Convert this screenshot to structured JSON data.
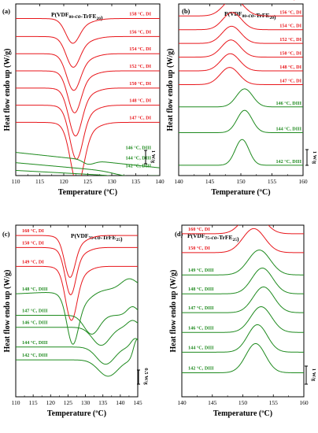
{
  "chart_data": [
    {
      "type": "line",
      "panel": "(a)",
      "title_parts": [
        [
          "P(VDF",
          false,
          false
        ],
        [
          "80",
          false,
          true
        ],
        [
          "-",
          false,
          false
        ],
        [
          "co",
          true,
          false
        ],
        [
          "-TrFE",
          false,
          false
        ],
        [
          "20",
          false,
          true
        ],
        [
          ")",
          false,
          false
        ]
      ],
      "xlabel": "Temperature (ºC)",
      "ylabel": "Heat flow endo up (W/g)",
      "xlim": [
        110,
        140
      ],
      "xticks": [
        110,
        115,
        120,
        125,
        130,
        135,
        140
      ],
      "scalebar": {
        "label": "1 W/g"
      },
      "series": [
        {
          "name": "158 °C, DI",
          "color": "#e8161b",
          "base": 9.15,
          "peaks": [
            [
              121.8,
              -1.2,
              1.4
            ],
            [
              123.5,
              -0.3,
              2.5
            ]
          ]
        },
        {
          "name": "156 °C, DI",
          "color": "#e8161b",
          "base": 8.1,
          "peaks": [
            [
              121.9,
              -1.5,
              1.4
            ],
            [
              123.5,
              -0.35,
              2.5
            ]
          ]
        },
        {
          "name": "154 °C, DI",
          "color": "#e8161b",
          "base": 7.1,
          "peaks": [
            [
              122.0,
              -1.8,
              1.4
            ],
            [
              123.5,
              -0.4,
              2.5
            ]
          ]
        },
        {
          "name": "152 °C, DI",
          "color": "#e8161b",
          "base": 6.1,
          "peaks": [
            [
              122.2,
              -2.1,
              1.35
            ],
            [
              123.6,
              -0.4,
              2.5
            ]
          ]
        },
        {
          "name": "150 °C, DI",
          "color": "#e8161b",
          "base": 5.1,
          "peaks": [
            [
              122.4,
              -2.4,
              1.35
            ],
            [
              123.7,
              -0.45,
              2.5
            ]
          ]
        },
        {
          "name": "148 °C, DI",
          "color": "#e8161b",
          "base": 4.1,
          "peaks": [
            [
              122.6,
              -2.7,
              1.35
            ],
            [
              123.8,
              -0.5,
              2.5
            ]
          ]
        },
        {
          "name": "147 °C, DI",
          "color": "#e8161b",
          "base": 3.1,
          "peaks": [
            [
              122.8,
              -3.1,
              1.4
            ],
            [
              124.0,
              -0.55,
              2.6
            ]
          ]
        },
        {
          "name": "146 °C, DIII",
          "color": "#1e8a1e",
          "base": 1.35,
          "slope": -0.03,
          "peaks": [
            [
              125.3,
              -0.35,
              1.1
            ],
            [
              125.5,
              0.12,
              0.9
            ]
          ]
        },
        {
          "name": "144 °C, DIII",
          "color": "#1e8a1e",
          "base": 0.75,
          "slope": -0.025,
          "peaks": [
            [
              133.5,
              -0.2,
              3.0
            ]
          ]
        },
        {
          "name": "142 °C, DIII",
          "color": "#1e8a1e",
          "base": 0.3,
          "slope": -0.015,
          "peaks": [
            [
              134.5,
              -0.12,
              2.5
            ]
          ]
        }
      ]
    },
    {
      "type": "line",
      "panel": "(b)",
      "title_parts": [
        [
          "P(VDF",
          false,
          false
        ],
        [
          "80",
          false,
          true
        ],
        [
          "-",
          false,
          false
        ],
        [
          "co",
          true,
          false
        ],
        [
          "-TrFE",
          false,
          false
        ],
        [
          "20",
          false,
          true
        ],
        [
          ")",
          false,
          false
        ]
      ],
      "xlabel": "Temperature (ºC)",
      "ylabel": "Heat flow endo up (W/g)",
      "xlim": [
        140,
        160
      ],
      "xticks": [
        140,
        145,
        150,
        155,
        160
      ],
      "scalebar": {
        "label": "1 W/g"
      },
      "series": [
        {
          "name": "158 °C, DI",
          "color": "#e8161b",
          "base": 10.1,
          "peaks": [
            [
              148.9,
              1.0,
              1.6
            ]
          ]
        },
        {
          "name": "156 °C, DI",
          "color": "#e8161b",
          "base": 9.3,
          "peaks": [
            [
              148.8,
              1.0,
              1.6
            ]
          ]
        },
        {
          "name": "154 °C, DI",
          "color": "#e8161b",
          "base": 8.5,
          "peaks": [
            [
              148.6,
              1.0,
              1.5
            ]
          ]
        },
        {
          "name": "152 °C, DI",
          "color": "#e8161b",
          "base": 7.7,
          "peaks": [
            [
              148.5,
              1.0,
              1.5
            ]
          ]
        },
        {
          "name": "150 °C, DI",
          "color": "#e8161b",
          "base": 6.9,
          "peaks": [
            [
              148.4,
              1.0,
              1.5
            ]
          ]
        },
        {
          "name": "148 °C, DI",
          "color": "#e8161b",
          "base": 6.1,
          "peaks": [
            [
              148.3,
              1.0,
              1.5
            ]
          ]
        },
        {
          "name": "147 °C, DI",
          "color": "#e8161b",
          "base": 5.3,
          "peaks": [
            [
              148.2,
              1.0,
              1.5
            ]
          ]
        },
        {
          "name": "146 °C, DIII",
          "color": "#1e8a1e",
          "base": 4.0,
          "peaks": [
            [
              150.6,
              1.05,
              1.3
            ]
          ]
        },
        {
          "name": "144 °C, DIII",
          "color": "#1e8a1e",
          "base": 2.5,
          "peaks": [
            [
              150.6,
              1.3,
              1.2
            ]
          ]
        },
        {
          "name": "142 °C, DIII",
          "color": "#1e8a1e",
          "base": 0.6,
          "peaks": [
            [
              150.2,
              1.5,
              1.1
            ]
          ]
        }
      ]
    },
    {
      "type": "line",
      "panel": "(c)",
      "title_parts": [
        [
          "P(VDF",
          false,
          false
        ],
        [
          "75",
          false,
          true
        ],
        [
          "-",
          false,
          false
        ],
        [
          "co",
          true,
          false
        ],
        [
          "-TrFE",
          false,
          false
        ],
        [
          "25",
          false,
          true
        ],
        [
          ")",
          false,
          false
        ]
      ],
      "xlabel": "Temperature (ºC)",
      "ylabel": "Heat flow endo up (W/g)",
      "xlim": [
        110,
        145
      ],
      "xticks": [
        110,
        115,
        120,
        125,
        130,
        135,
        140,
        145
      ],
      "scalebar": {
        "label": "0.5 W/g"
      },
      "series": [
        {
          "name": "160 °C, DI",
          "color": "#e8161b",
          "base": 9.4,
          "peaks": [
            [
              125.5,
              -2.0,
              1.5
            ],
            [
              127.0,
              -0.5,
              3.0
            ]
          ]
        },
        {
          "name": "150 °C, DI",
          "color": "#e8161b",
          "base": 8.7,
          "peaks": [
            [
              125.7,
              -2.3,
              1.5
            ],
            [
              127.0,
              -0.5,
              3.0
            ]
          ]
        },
        {
          "name": "149 °C, DI",
          "color": "#e8161b",
          "base": 7.6,
          "peaks": [
            [
              125.9,
              -2.6,
              1.6
            ],
            [
              127.2,
              -0.6,
              3.0
            ]
          ]
        },
        {
          "name": "148 °C, DIII",
          "color": "#1e8a1e",
          "base": 6.0,
          "slope": 0.01,
          "peaks": [
            [
              126.3,
              -2.4,
              1.6
            ],
            [
              128.0,
              -0.8,
              3.2
            ],
            [
              142.5,
              0.55,
              2.2
            ]
          ]
        },
        {
          "name": "147 °C, DIII",
          "color": "#1e8a1e",
          "base": 4.75,
          "peaks": [
            [
              131.8,
              -1.1,
              2.2
            ],
            [
              143.5,
              0.5,
              1.5
            ]
          ]
        },
        {
          "name": "146 °C, DIII",
          "color": "#1e8a1e",
          "base": 4.05,
          "peaks": [
            [
              134.5,
              -1.05,
              2.5
            ],
            [
              143.5,
              0.4,
              1.5
            ]
          ]
        },
        {
          "name": "144 °C, DIII",
          "color": "#1e8a1e",
          "base": 2.9,
          "peaks": [
            [
              135.8,
              -1.0,
              2.6
            ],
            [
              144.3,
              0.5,
              1.2
            ]
          ]
        },
        {
          "name": "142 °C, DIII",
          "color": "#1e8a1e",
          "base": 2.15,
          "peaks": [
            [
              136.5,
              -0.95,
              2.8
            ],
            [
              144.8,
              1.2,
              1.0
            ]
          ]
        }
      ]
    },
    {
      "type": "line",
      "panel": "(d)",
      "title_parts": [
        [
          "P(VDF",
          false,
          false
        ],
        [
          "75",
          false,
          true
        ],
        [
          "-",
          false,
          false
        ],
        [
          "co",
          true,
          false
        ],
        [
          "-TrFE",
          false,
          false
        ],
        [
          "25",
          false,
          true
        ],
        [
          ")",
          false,
          false
        ]
      ],
      "xlabel": "Temperature (ºC)",
      "ylabel": "Heat flow endo up (W/g)",
      "xlim": [
        140,
        160
      ],
      "xticks": [
        140,
        145,
        150,
        155,
        160
      ],
      "scalebar": {
        "label": "1 W/g"
      },
      "series": [
        {
          "name": "160 °C, DI",
          "color": "#e8161b",
          "base": 9.5,
          "peaks": [
            [
              151.7,
              1.3,
              1.8
            ]
          ]
        },
        {
          "name": "150 °C, DI",
          "color": "#e8161b",
          "base": 8.4,
          "peaks": [
            [
              151.8,
              1.4,
              1.8
            ]
          ]
        },
        {
          "name": "149 °C, DIII",
          "color": "#1e8a1e",
          "base": 7.1,
          "peaks": [
            [
              152.7,
              1.45,
              1.8
            ]
          ]
        },
        {
          "name": "148 °C, DIII",
          "color": "#1e8a1e",
          "base": 6.0,
          "peaks": [
            [
              153.2,
              1.5,
              1.7
            ]
          ]
        },
        {
          "name": "147 °C, DIII",
          "color": "#1e8a1e",
          "base": 4.9,
          "peaks": [
            [
              153.4,
              1.5,
              1.7
            ]
          ]
        },
        {
          "name": "146 °C, DIII",
          "color": "#1e8a1e",
          "base": 3.75,
          "peaks": [
            [
              153.0,
              1.5,
              1.7
            ]
          ]
        },
        {
          "name": "144 °C, DIII",
          "color": "#1e8a1e",
          "base": 2.6,
          "peaks": [
            [
              152.4,
              1.6,
              1.6
            ]
          ]
        },
        {
          "name": "142 °C, DIII",
          "color": "#1e8a1e",
          "base": 1.4,
          "peaks": [
            [
              152.1,
              1.7,
              1.6
            ]
          ]
        }
      ]
    }
  ]
}
